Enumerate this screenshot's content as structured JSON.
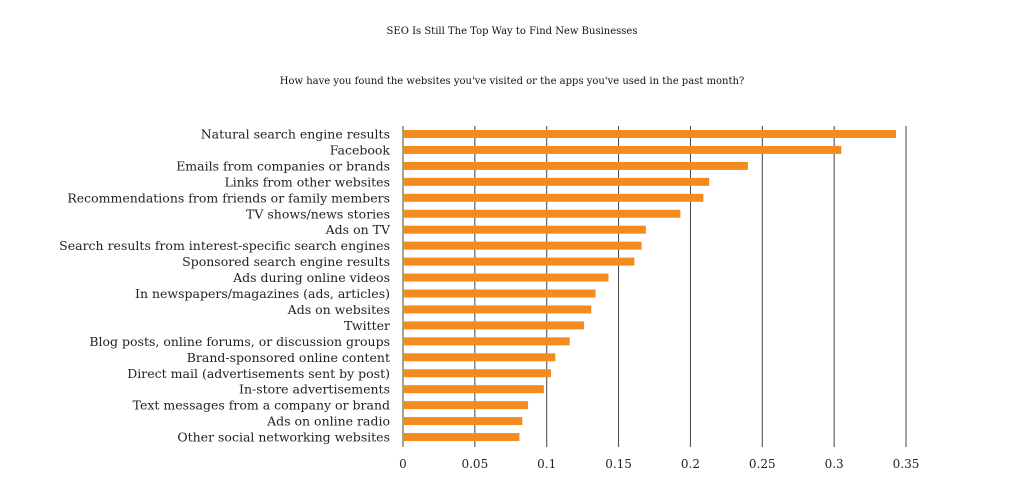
{
  "title": "SEO Is Still  The Top Way to Find New Businesses",
  "subtitle": "How have you found the websites you've visited or the apps you've used in the past month?",
  "colors": {
    "bar": "#f28c1e",
    "grid": "#444444",
    "text": "#222222"
  },
  "chart_data": {
    "type": "bar",
    "orientation": "horizontal",
    "title": "SEO Is Still  The Top Way to Find New Businesses",
    "subtitle": "How have you found the websites you've visited or the apps you've used in the past month?",
    "xlabel": "",
    "ylabel": "",
    "xlim": [
      0,
      0.35
    ],
    "xticks": [
      "0",
      "0.05",
      "0.1",
      "0.15",
      "0.2",
      "0.25",
      "0.3",
      "0.35"
    ],
    "grid": true,
    "legend": "none",
    "categories": [
      "Natural search engine results",
      "Facebook",
      "Emails from companies or brands",
      "Links from other websites",
      "Recommendations from friends or family members",
      "TV shows/news stories",
      "Ads on TV",
      "Search results from interest-specific search engines",
      "Sponsored search engine results",
      "Ads during online videos",
      "In newspapers/magazines (ads, articles)",
      "Ads on websites",
      "Twitter",
      "Blog posts, online forums, or discussion groups",
      "Brand-sponsored online content",
      "Direct mail (advertisements sent by post)",
      "In-store advertisements",
      "Text messages from a company or brand",
      "Ads on online radio",
      "Other social networking websites"
    ],
    "values": [
      0.343,
      0.305,
      0.24,
      0.213,
      0.209,
      0.193,
      0.169,
      0.166,
      0.161,
      0.143,
      0.134,
      0.131,
      0.126,
      0.116,
      0.106,
      0.103,
      0.098,
      0.087,
      0.083,
      0.081
    ]
  }
}
